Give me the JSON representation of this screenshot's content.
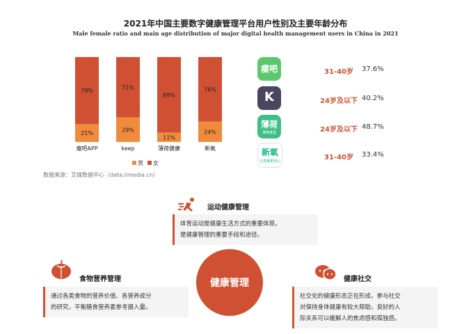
{
  "title": "2021年中国主要数字健康管理平台用户性别及主要年龄分布",
  "subtitle": "Male female ratio and main age distribution of major digital health management users in China in 2021",
  "source": "数据来源：艾媒数据中心（data.iimedia.cn）",
  "colors": {
    "male": "#f08a3c",
    "female": "#cf5032",
    "accent": "#cf5032"
  },
  "chart_data": {
    "type": "bar",
    "stacked": true,
    "categories": [
      "瘦吧APP",
      "keep",
      "薄荷健康",
      "新氧"
    ],
    "series": [
      {
        "name": "男",
        "values": [
          21,
          29,
          11,
          24
        ],
        "labels": [
          "21%",
          "29%",
          "11%",
          "24%"
        ]
      },
      {
        "name": "女",
        "values": [
          79,
          71,
          89,
          76
        ],
        "labels": [
          "79%",
          "71%",
          "89%",
          "76%"
        ]
      }
    ],
    "ylim": [
      0,
      100
    ],
    "legend": "bottom"
  },
  "apps": [
    {
      "icon": "shouba-app-icon",
      "logo_text": "瘦吧",
      "age": "31-40岁",
      "pct": "37.6%",
      "color": "#5cc86e"
    },
    {
      "icon": "keep-app-icon",
      "logo_text": "K",
      "age": "24岁及以下",
      "pct": "40.2%",
      "color": "#4a4660"
    },
    {
      "icon": "boohee-app-icon",
      "logo_text": "薄荷",
      "sub": "薄荷食堂",
      "age": "24岁及以下",
      "pct": "48.7%",
      "color": "#3fbf86"
    },
    {
      "icon": "soyoung-app-icon",
      "logo_text": "新氧",
      "sub": "让变美更安心",
      "age": "31-40岁",
      "pct": "33.4%",
      "color": "#22b58a"
    }
  ],
  "features": {
    "sport": {
      "title": "运动健康管理",
      "text1": "体育运动是健康生活方式的重要体现，",
      "text2": "是健康管理的重要手段和途径。"
    },
    "food": {
      "title": "食物营养管理",
      "text1": "通过各类食物的营养价值、各营养成分",
      "text2": "的研究，平衡膳食营养素参考摄入量。"
    },
    "social": {
      "title": "健康社交",
      "text1": "社交化的健康形态正在形成，参与社交",
      "text2": "对保持身体健康有较大帮助，良好的人",
      "text3": "际关系可以缓解人的焦虑感和孤独感。"
    },
    "center": "健康管理"
  }
}
